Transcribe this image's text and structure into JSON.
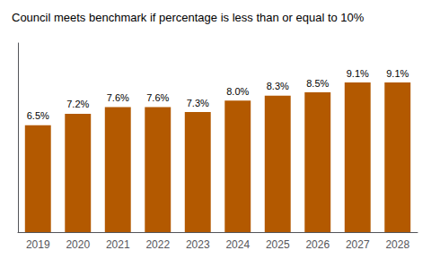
{
  "chart_data": {
    "type": "bar",
    "title": "Council meets benchmark if percentage is less than or equal to 10%",
    "categories": [
      "2019",
      "2020",
      "2021",
      "2022",
      "2023",
      "2024",
      "2025",
      "2026",
      "2027",
      "2028"
    ],
    "values": [
      6.5,
      7.2,
      7.6,
      7.6,
      7.3,
      8.0,
      8.3,
      8.5,
      9.1,
      9.1
    ],
    "value_labels": [
      "6.5%",
      "7.2%",
      "7.6%",
      "7.6%",
      "7.3%",
      "8.0%",
      "8.3%",
      "8.5%",
      "9.1%",
      "9.1%"
    ],
    "data_labels": true,
    "color": "#B35900",
    "ylim": [
      0,
      11.5
    ],
    "grid": false,
    "tick_labels": "x"
  }
}
